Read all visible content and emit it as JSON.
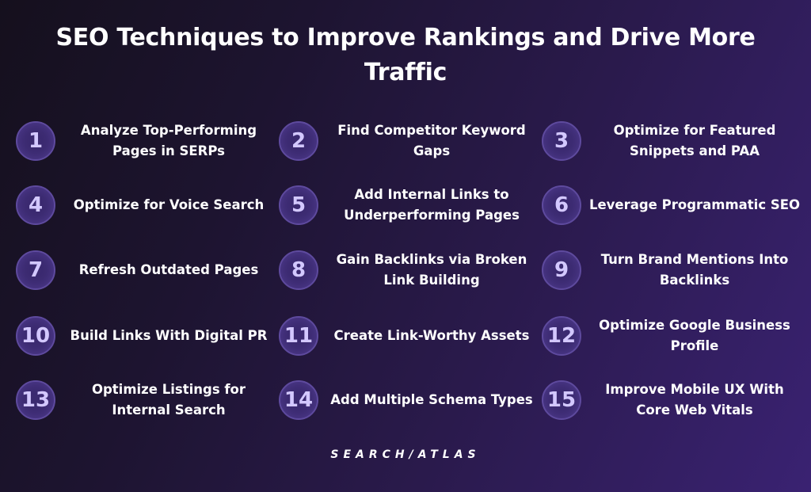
{
  "title": {
    "line1": "SEO Techniques to Improve Rankings and Drive More",
    "line2": "Traffic"
  },
  "items": [
    {
      "number": "1",
      "label": "Analyze Top-Performing Pages in SERPs"
    },
    {
      "number": "2",
      "label": "Find Competitor Keyword Gaps"
    },
    {
      "number": "3",
      "label": "Optimize for Featured Snippets and PAA"
    },
    {
      "number": "4",
      "label": "Optimize for Voice Search"
    },
    {
      "number": "5",
      "label": "Add Internal Links to Underperforming Pages"
    },
    {
      "number": "6",
      "label": "Leverage Programmatic SEO"
    },
    {
      "number": "7",
      "label": "Refresh Outdated Pages"
    },
    {
      "number": "8",
      "label": "Gain Backlinks via Broken Link Building"
    },
    {
      "number": "9",
      "label": "Turn Brand Mentions Into Backlinks"
    },
    {
      "number": "10",
      "label": "Build Links With Digital PR"
    },
    {
      "number": "11",
      "label": "Create Link-Worthy Assets"
    },
    {
      "number": "12",
      "label": "Optimize Google Business Profile"
    },
    {
      "number": "13",
      "label": "Optimize Listings for Internal Search"
    },
    {
      "number": "14",
      "label": "Add Multiple Schema Types"
    },
    {
      "number": "15",
      "label": "Improve Mobile UX With Core Web Vitals"
    }
  ],
  "brand": "SEARCH/ATLAS",
  "colors": {
    "background_start": "#15101d",
    "background_end": "#3a2272",
    "badge_fill": "#3b2a70",
    "badge_border": "#5e4a9e",
    "badge_text": "#d3c8ff",
    "text": "#ffffff"
  }
}
